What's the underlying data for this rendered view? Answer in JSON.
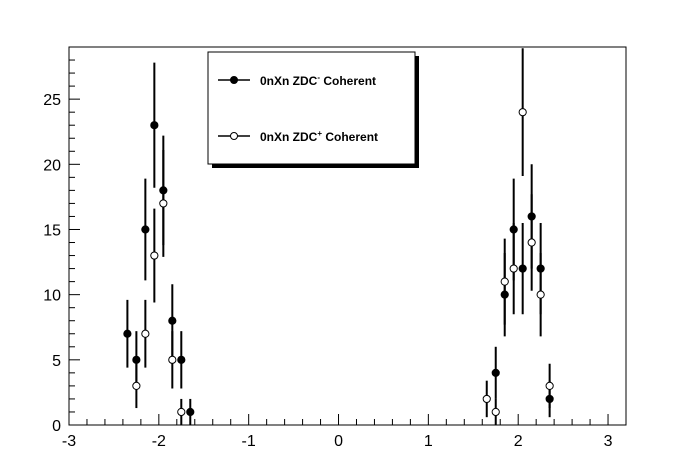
{
  "chart_data": {
    "type": "scatter",
    "title": "",
    "xlabel": "",
    "ylabel": "",
    "xlim": [
      -3,
      3.2
    ],
    "ylim": [
      0,
      29
    ],
    "x_ticks": [
      -3,
      -2,
      -1,
      0,
      1,
      2,
      3
    ],
    "y_ticks": [
      0,
      5,
      10,
      15,
      20,
      25
    ],
    "x_tick_labels": [
      "-3",
      "-2",
      "-1",
      "0",
      "1",
      "2",
      "3"
    ],
    "y_tick_labels": [
      "0",
      "5",
      "10",
      "15",
      "20",
      "25"
    ],
    "grid": false,
    "legend_position": "top-center",
    "series": [
      {
        "name_main": "0nXn ZDC",
        "name_sup": "-",
        "name_rest": " Coherent",
        "marker": "filled-circle",
        "color": "#000000",
        "points": [
          {
            "x": -2.35,
            "y": 7,
            "err": 2.6
          },
          {
            "x": -2.25,
            "y": 5,
            "err": 2.2
          },
          {
            "x": -2.15,
            "y": 15,
            "err": 3.9
          },
          {
            "x": -2.05,
            "y": 23,
            "err": 4.8
          },
          {
            "x": -1.95,
            "y": 18,
            "err": 4.2
          },
          {
            "x": -1.85,
            "y": 8,
            "err": 2.8
          },
          {
            "x": -1.75,
            "y": 5,
            "err": 2.2
          },
          {
            "x": -1.65,
            "y": 1,
            "err": 1.0
          },
          {
            "x": 1.75,
            "y": 4,
            "err": 2.0
          },
          {
            "x": 1.85,
            "y": 10,
            "err": 3.2
          },
          {
            "x": 1.95,
            "y": 15,
            "err": 3.9
          },
          {
            "x": 2.05,
            "y": 12,
            "err": 3.5
          },
          {
            "x": 2.15,
            "y": 16,
            "err": 4.0
          },
          {
            "x": 2.25,
            "y": 12,
            "err": 3.5
          },
          {
            "x": 2.35,
            "y": 2,
            "err": 1.4
          }
        ]
      },
      {
        "name_main": "0nXn ZDC",
        "name_sup": "+",
        "name_rest": " Coherent",
        "marker": "open-circle",
        "color": "#000000",
        "points": [
          {
            "x": -2.25,
            "y": 3,
            "err": 1.7
          },
          {
            "x": -2.15,
            "y": 7,
            "err": 2.6
          },
          {
            "x": -2.05,
            "y": 13,
            "err": 3.6
          },
          {
            "x": -1.95,
            "y": 17,
            "err": 4.1
          },
          {
            "x": -1.85,
            "y": 5,
            "err": 2.2
          },
          {
            "x": -1.75,
            "y": 1,
            "err": 1.0
          },
          {
            "x": 1.65,
            "y": 2,
            "err": 1.4
          },
          {
            "x": 1.75,
            "y": 1,
            "err": 1.0
          },
          {
            "x": 1.85,
            "y": 11,
            "err": 3.3
          },
          {
            "x": 1.95,
            "y": 12,
            "err": 3.5
          },
          {
            "x": 2.05,
            "y": 24,
            "err": 4.9
          },
          {
            "x": 2.15,
            "y": 14,
            "err": 3.7
          },
          {
            "x": 2.25,
            "y": 10,
            "err": 3.2
          },
          {
            "x": 2.35,
            "y": 3,
            "err": 1.7
          }
        ]
      }
    ]
  }
}
